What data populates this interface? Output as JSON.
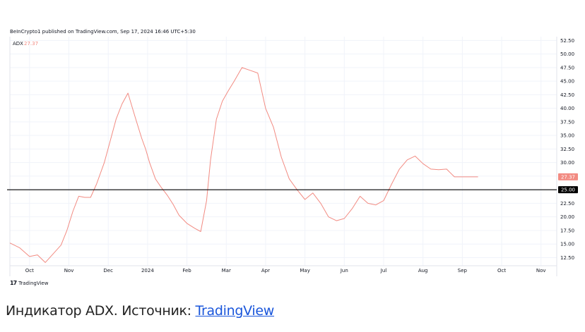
{
  "header": {
    "text": "BeInCrypto1 published on TradingView.com, Sep 17, 2024 16:46 UTC+5:30"
  },
  "logo": {
    "mark": "17",
    "text": "TradingView"
  },
  "caption": {
    "text": "Индикатор ADX. Источник: ",
    "link_text": "TradingView"
  },
  "colors": {
    "line": "#f28b82",
    "threshold": "#000000",
    "grid": "#f0f3fa",
    "axis_text": "#131722"
  },
  "chart_data": {
    "type": "line",
    "indicator": {
      "name": "ADX",
      "value": "27.37"
    },
    "x_ticks": [
      {
        "label": "Oct",
        "t": 0.5
      },
      {
        "label": "Nov",
        "t": 1.5
      },
      {
        "label": "Dec",
        "t": 2.5
      },
      {
        "label": "2024",
        "t": 3.5
      },
      {
        "label": "Feb",
        "t": 4.5
      },
      {
        "label": "Mar",
        "t": 5.5
      },
      {
        "label": "Apr",
        "t": 6.5
      },
      {
        "label": "May",
        "t": 7.5
      },
      {
        "label": "Jun",
        "t": 8.5
      },
      {
        "label": "Jul",
        "t": 9.5
      },
      {
        "label": "Aug",
        "t": 10.5
      },
      {
        "label": "Sep",
        "t": 11.5
      },
      {
        "label": "Oct",
        "t": 12.5
      },
      {
        "label": "Nov",
        "t": 13.5
      }
    ],
    "y_ticks": [
      "52.50",
      "50.00",
      "47.50",
      "45.00",
      "42.50",
      "40.00",
      "37.50",
      "35.00",
      "32.50",
      "30.00",
      "27.50",
      "25.00",
      "22.50",
      "20.00",
      "17.50",
      "15.00",
      "12.50"
    ],
    "ylim": [
      11.0,
      53.2
    ],
    "xlim": [
      0.0,
      13.9
    ],
    "threshold": {
      "value": 25.0,
      "label": "25.00"
    },
    "last_value_label": "27.37",
    "series": [
      {
        "x": [
          0.0,
          0.25,
          0.5,
          0.7,
          0.9,
          1.1,
          1.3,
          1.45,
          1.6,
          1.75,
          1.9,
          2.05,
          2.2,
          2.4,
          2.55,
          2.7,
          2.85,
          3.0,
          3.2,
          3.35,
          3.45,
          3.55,
          3.7,
          3.85,
          4.0,
          4.15,
          4.3,
          4.5,
          4.7,
          4.85,
          5.0,
          5.1,
          5.25,
          5.4,
          5.55,
          5.7,
          5.9,
          6.1,
          6.3,
          6.5,
          6.7,
          6.9,
          7.1,
          7.3,
          7.5,
          7.7,
          7.9,
          8.1,
          8.3,
          8.5,
          8.7,
          8.9,
          9.1,
          9.3,
          9.5,
          9.7,
          9.9,
          10.1,
          10.3,
          10.5,
          10.7,
          10.9,
          11.1,
          11.3,
          11.5,
          11.7,
          11.9
        ],
        "y": [
          15.2,
          14.3,
          12.7,
          13.0,
          11.6,
          13.2,
          14.8,
          17.5,
          21.0,
          23.8,
          23.6,
          23.6,
          26.0,
          30.0,
          34.0,
          38.0,
          40.8,
          42.8,
          38.0,
          34.5,
          32.5,
          30.0,
          27.0,
          25.4,
          24.0,
          22.3,
          20.3,
          18.8,
          17.9,
          17.3,
          23.0,
          30.5,
          38.0,
          41.3,
          43.2,
          45.0,
          47.5,
          47.0,
          46.5,
          40.0,
          36.5,
          31.0,
          27.0,
          25.0,
          23.2,
          24.4,
          22.5,
          20.0,
          19.3,
          19.7,
          21.5,
          23.8,
          22.5,
          22.2,
          23.0,
          26.0,
          28.8,
          30.5,
          31.2,
          29.8,
          28.8,
          28.7,
          28.8,
          27.37,
          27.37,
          27.37,
          27.37
        ]
      }
    ]
  }
}
